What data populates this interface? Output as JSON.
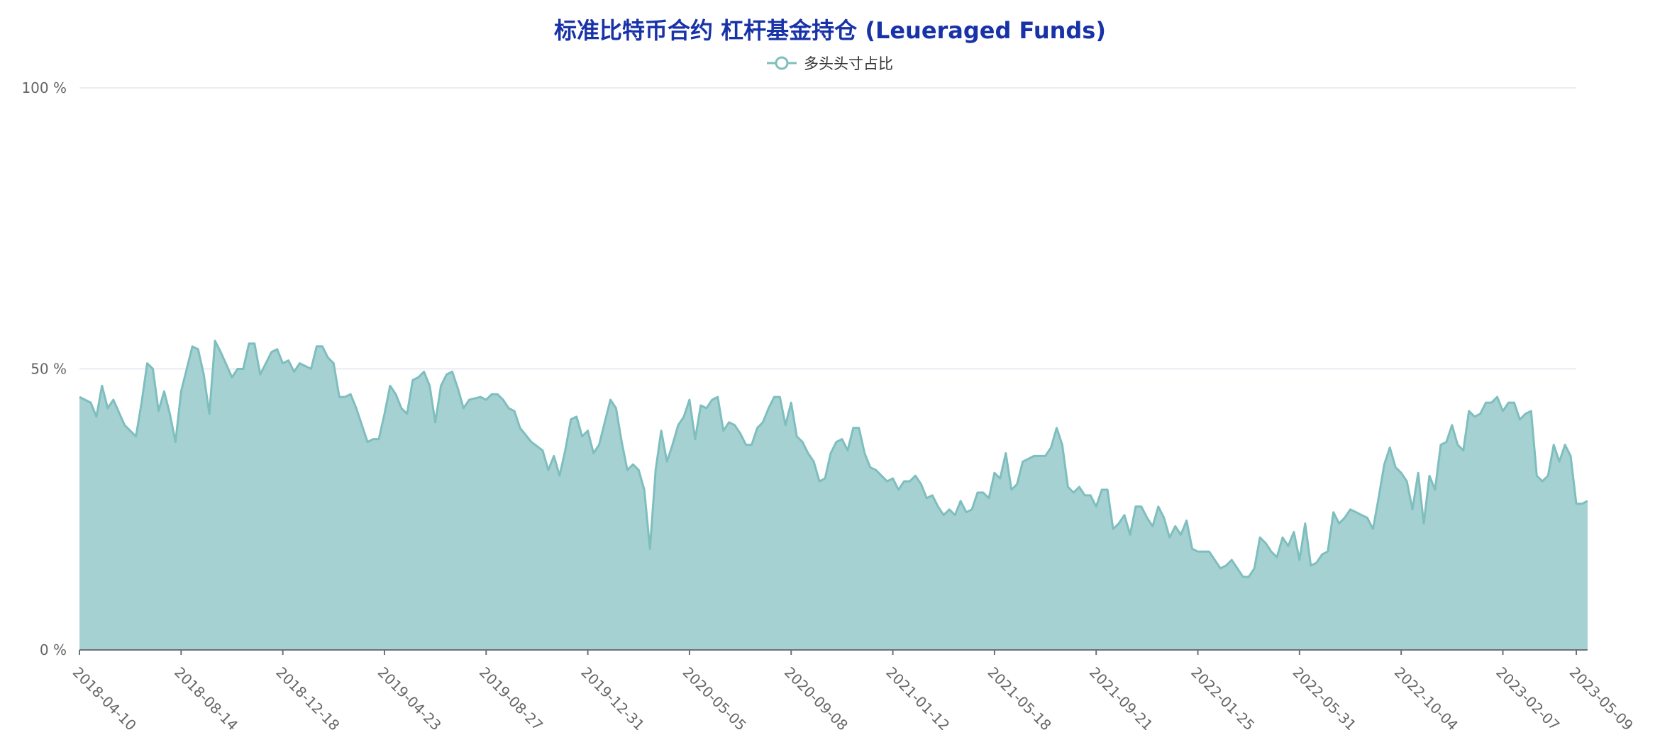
{
  "chart_data": {
    "type": "area",
    "title": "标准比特币合约 杠杆基金持仓 (Leueraged Funds)",
    "legend_position": "top-center",
    "grid": true,
    "colors": {
      "line": "#7fbebe",
      "fill": "#a5d1d2",
      "title": "#1832a8",
      "axis": "#666666"
    },
    "ylim": [
      0,
      100
    ],
    "y_ticks": [
      {
        "value": 0,
        "label": "0 %"
      },
      {
        "value": 50,
        "label": "50 %"
      },
      {
        "value": 100,
        "label": "100 %"
      }
    ],
    "x_tick_labels": [
      "2018-04-10",
      "2018-08-14",
      "2018-12-18",
      "2019-04-23",
      "2019-08-27",
      "2019-12-31",
      "2020-05-05",
      "2020-09-08",
      "2021-01-12",
      "2021-05-18",
      "2021-09-21",
      "2022-01-25",
      "2022-05-31",
      "2022-10-04",
      "2023-02-07",
      "2023-05-09"
    ],
    "series": [
      {
        "name": "多头头寸占比",
        "knots": [
          [
            "2018-04-10",
            45
          ],
          [
            "2018-04-24",
            44
          ],
          [
            "2018-05-01",
            41.5
          ],
          [
            "2018-05-08",
            47
          ],
          [
            "2018-05-15",
            43
          ],
          [
            "2018-05-22",
            44.5
          ],
          [
            "2018-06-05",
            40
          ],
          [
            "2018-06-19",
            38
          ],
          [
            "2018-06-26",
            44
          ],
          [
            "2018-07-03",
            51
          ],
          [
            "2018-07-10",
            50
          ],
          [
            "2018-07-17",
            42.5
          ],
          [
            "2018-07-24",
            46
          ],
          [
            "2018-07-31",
            42
          ],
          [
            "2018-08-07",
            37
          ],
          [
            "2018-08-14",
            46
          ],
          [
            "2018-08-28",
            54
          ],
          [
            "2018-09-04",
            53.5
          ],
          [
            "2018-09-11",
            49
          ],
          [
            "2018-09-18",
            42
          ],
          [
            "2018-09-25",
            55
          ],
          [
            "2018-10-02",
            53
          ],
          [
            "2018-10-16",
            48.5
          ],
          [
            "2018-10-23",
            50
          ],
          [
            "2018-10-30",
            50
          ],
          [
            "2018-11-06",
            54.5
          ],
          [
            "2018-11-13",
            54.5
          ],
          [
            "2018-11-20",
            49
          ],
          [
            "2018-11-27",
            51
          ],
          [
            "2018-12-04",
            53
          ],
          [
            "2018-12-11",
            53.5
          ],
          [
            "2018-12-18",
            51
          ],
          [
            "2018-12-25",
            51.5
          ],
          [
            "2019-01-01",
            49.5
          ],
          [
            "2019-01-08",
            51
          ],
          [
            "2019-01-22",
            50
          ],
          [
            "2019-01-29",
            54
          ],
          [
            "2019-02-05",
            54
          ],
          [
            "2019-02-12",
            52
          ],
          [
            "2019-02-19",
            51
          ],
          [
            "2019-02-26",
            45
          ],
          [
            "2019-03-05",
            45
          ],
          [
            "2019-03-12",
            45.5
          ],
          [
            "2019-03-19",
            43
          ],
          [
            "2019-04-02",
            37
          ],
          [
            "2019-04-09",
            37.5
          ],
          [
            "2019-04-16",
            37.5
          ],
          [
            "2019-04-23",
            42
          ],
          [
            "2019-04-30",
            47
          ],
          [
            "2019-05-07",
            45.5
          ],
          [
            "2019-05-14",
            43
          ],
          [
            "2019-05-21",
            42
          ],
          [
            "2019-05-28",
            48
          ],
          [
            "2019-06-04",
            48.5
          ],
          [
            "2019-06-11",
            49.5
          ],
          [
            "2019-06-18",
            47
          ],
          [
            "2019-06-25",
            40.5
          ],
          [
            "2019-07-02",
            47
          ],
          [
            "2019-07-09",
            49
          ],
          [
            "2019-07-16",
            49.5
          ],
          [
            "2019-07-23",
            46.5
          ],
          [
            "2019-07-30",
            43
          ],
          [
            "2019-08-06",
            44.5
          ],
          [
            "2019-08-20",
            45
          ],
          [
            "2019-08-27",
            44.5
          ],
          [
            "2019-09-03",
            45.5
          ],
          [
            "2019-09-10",
            45.5
          ],
          [
            "2019-09-17",
            44.5
          ],
          [
            "2019-09-24",
            43
          ],
          [
            "2019-10-01",
            42.5
          ],
          [
            "2019-10-08",
            39.5
          ],
          [
            "2019-10-22",
            37
          ],
          [
            "2019-11-05",
            35.5
          ],
          [
            "2019-11-12",
            32
          ],
          [
            "2019-11-19",
            34.5
          ],
          [
            "2019-11-26",
            31
          ],
          [
            "2019-12-03",
            35.5
          ],
          [
            "2019-12-10",
            41
          ],
          [
            "2019-12-17",
            41.5
          ],
          [
            "2019-12-24",
            38
          ],
          [
            "2019-12-31",
            39
          ],
          [
            "2020-01-07",
            35
          ],
          [
            "2020-01-14",
            36.5
          ],
          [
            "2020-01-21",
            40.5
          ],
          [
            "2020-01-28",
            44.5
          ],
          [
            "2020-02-04",
            43
          ],
          [
            "2020-02-11",
            37
          ],
          [
            "2020-02-18",
            32
          ],
          [
            "2020-02-25",
            33
          ],
          [
            "2020-03-03",
            32
          ],
          [
            "2020-03-10",
            28.5
          ],
          [
            "2020-03-17",
            18
          ],
          [
            "2020-03-24",
            32
          ],
          [
            "2020-03-31",
            39
          ],
          [
            "2020-04-07",
            33.5
          ],
          [
            "2020-04-14",
            36.5
          ],
          [
            "2020-04-21",
            40
          ],
          [
            "2020-04-28",
            41.5
          ],
          [
            "2020-05-05",
            44.5
          ],
          [
            "2020-05-12",
            37.5
          ],
          [
            "2020-05-19",
            43.5
          ],
          [
            "2020-05-26",
            43
          ],
          [
            "2020-06-02",
            44.5
          ],
          [
            "2020-06-09",
            45
          ],
          [
            "2020-06-16",
            39
          ],
          [
            "2020-06-23",
            40.5
          ],
          [
            "2020-06-30",
            40
          ],
          [
            "2020-07-07",
            38.5
          ],
          [
            "2020-07-14",
            36.5
          ],
          [
            "2020-07-21",
            36.5
          ],
          [
            "2020-07-28",
            39.5
          ],
          [
            "2020-08-04",
            40.5
          ],
          [
            "2020-08-11",
            43
          ],
          [
            "2020-08-18",
            45
          ],
          [
            "2020-08-25",
            45
          ],
          [
            "2020-09-01",
            40
          ],
          [
            "2020-09-08",
            44
          ],
          [
            "2020-09-15",
            38
          ],
          [
            "2020-09-22",
            37
          ],
          [
            "2020-09-29",
            35
          ],
          [
            "2020-10-06",
            33.5
          ],
          [
            "2020-10-13",
            30
          ],
          [
            "2020-10-20",
            30.5
          ],
          [
            "2020-10-27",
            35
          ],
          [
            "2020-11-03",
            37
          ],
          [
            "2020-11-10",
            37.5
          ],
          [
            "2020-11-17",
            35.5
          ],
          [
            "2020-11-24",
            39.5
          ],
          [
            "2020-12-01",
            39.5
          ],
          [
            "2020-12-08",
            35
          ],
          [
            "2020-12-15",
            32.5
          ],
          [
            "2020-12-22",
            32
          ],
          [
            "2020-12-29",
            31
          ],
          [
            "2021-01-05",
            30
          ],
          [
            "2021-01-12",
            30.5
          ],
          [
            "2021-01-19",
            28.5
          ],
          [
            "2021-01-26",
            30
          ],
          [
            "2021-02-02",
            30
          ],
          [
            "2021-02-09",
            31
          ],
          [
            "2021-02-16",
            29.5
          ],
          [
            "2021-02-23",
            27
          ],
          [
            "2021-03-02",
            27.5
          ],
          [
            "2021-03-09",
            25.5
          ],
          [
            "2021-03-16",
            24
          ],
          [
            "2021-03-23",
            25
          ],
          [
            "2021-03-30",
            24
          ],
          [
            "2021-04-06",
            26.5
          ],
          [
            "2021-04-13",
            24.5
          ],
          [
            "2021-04-20",
            25
          ],
          [
            "2021-04-27",
            28
          ],
          [
            "2021-05-04",
            28
          ],
          [
            "2021-05-11",
            27
          ],
          [
            "2021-05-18",
            31.5
          ],
          [
            "2021-05-25",
            30.5
          ],
          [
            "2021-06-01",
            35
          ],
          [
            "2021-06-08",
            28.5
          ],
          [
            "2021-06-15",
            29.5
          ],
          [
            "2021-06-22",
            33.5
          ],
          [
            "2021-06-29",
            34
          ],
          [
            "2021-07-06",
            34.5
          ],
          [
            "2021-07-20",
            34.5
          ],
          [
            "2021-07-27",
            36
          ],
          [
            "2021-08-03",
            39.5
          ],
          [
            "2021-08-10",
            36.5
          ],
          [
            "2021-08-17",
            29
          ],
          [
            "2021-08-24",
            28
          ],
          [
            "2021-08-31",
            29
          ],
          [
            "2021-09-07",
            27.5
          ],
          [
            "2021-09-14",
            27.5
          ],
          [
            "2021-09-21",
            25.5
          ],
          [
            "2021-09-28",
            28.5
          ],
          [
            "2021-10-05",
            28.5
          ],
          [
            "2021-10-12",
            21.5
          ],
          [
            "2021-10-19",
            22.5
          ],
          [
            "2021-10-26",
            24
          ],
          [
            "2021-11-02",
            20.5
          ],
          [
            "2021-11-09",
            25.5
          ],
          [
            "2021-11-16",
            25.5
          ],
          [
            "2021-11-23",
            23.5
          ],
          [
            "2021-11-30",
            22
          ],
          [
            "2021-12-07",
            25.5
          ],
          [
            "2021-12-14",
            23.5
          ],
          [
            "2021-12-21",
            20
          ],
          [
            "2021-12-28",
            22
          ],
          [
            "2022-01-04",
            20.5
          ],
          [
            "2022-01-11",
            23
          ],
          [
            "2022-01-18",
            18
          ],
          [
            "2022-01-25",
            17.5
          ],
          [
            "2022-02-08",
            17.5
          ],
          [
            "2022-02-15",
            16
          ],
          [
            "2022-02-22",
            14.5
          ],
          [
            "2022-03-01",
            15
          ],
          [
            "2022-03-08",
            16
          ],
          [
            "2022-03-15",
            14.5
          ],
          [
            "2022-03-22",
            13
          ],
          [
            "2022-03-29",
            13
          ],
          [
            "2022-04-05",
            14.5
          ],
          [
            "2022-04-12",
            20
          ],
          [
            "2022-04-19",
            19
          ],
          [
            "2022-04-26",
            17.5
          ],
          [
            "2022-05-03",
            16.5
          ],
          [
            "2022-05-10",
            20
          ],
          [
            "2022-05-17",
            18.5
          ],
          [
            "2022-05-24",
            21
          ],
          [
            "2022-05-31",
            16
          ],
          [
            "2022-06-07",
            22.5
          ],
          [
            "2022-06-14",
            15
          ],
          [
            "2022-06-21",
            15.5
          ],
          [
            "2022-06-28",
            17
          ],
          [
            "2022-07-05",
            17.5
          ],
          [
            "2022-07-12",
            24.5
          ],
          [
            "2022-07-19",
            22.5
          ],
          [
            "2022-07-26",
            23.5
          ],
          [
            "2022-08-02",
            25
          ],
          [
            "2022-08-09",
            24.5
          ],
          [
            "2022-08-16",
            24
          ],
          [
            "2022-08-23",
            23.5
          ],
          [
            "2022-08-30",
            21.5
          ],
          [
            "2022-09-06",
            27
          ],
          [
            "2022-09-13",
            33
          ],
          [
            "2022-09-20",
            36
          ],
          [
            "2022-09-27",
            32.5
          ],
          [
            "2022-10-04",
            31.5
          ],
          [
            "2022-10-11",
            30
          ],
          [
            "2022-10-18",
            25
          ],
          [
            "2022-10-25",
            31.5
          ],
          [
            "2022-11-01",
            22.5
          ],
          [
            "2022-11-08",
            31
          ],
          [
            "2022-11-15",
            28.5
          ],
          [
            "2022-11-22",
            36.5
          ],
          [
            "2022-11-29",
            37
          ],
          [
            "2022-12-06",
            40
          ],
          [
            "2022-12-13",
            36.5
          ],
          [
            "2022-12-20",
            35.5
          ],
          [
            "2022-12-27",
            42.5
          ],
          [
            "2023-01-03",
            41.5
          ],
          [
            "2023-01-10",
            42
          ],
          [
            "2023-01-17",
            44
          ],
          [
            "2023-01-24",
            44
          ],
          [
            "2023-01-31",
            45
          ],
          [
            "2023-02-07",
            42.5
          ],
          [
            "2023-02-14",
            44
          ],
          [
            "2023-02-21",
            44
          ],
          [
            "2023-02-28",
            41
          ],
          [
            "2023-03-07",
            42
          ],
          [
            "2023-03-14",
            42.5
          ],
          [
            "2023-03-21",
            31
          ],
          [
            "2023-03-28",
            30
          ],
          [
            "2023-04-04",
            31
          ],
          [
            "2023-04-11",
            36.5
          ],
          [
            "2023-04-18",
            33.5
          ],
          [
            "2023-04-25",
            36.5
          ],
          [
            "2023-05-02",
            34.5
          ],
          [
            "2023-05-09",
            26
          ],
          [
            "2023-05-16",
            26
          ],
          [
            "2023-05-23",
            26.5
          ]
        ]
      }
    ]
  }
}
